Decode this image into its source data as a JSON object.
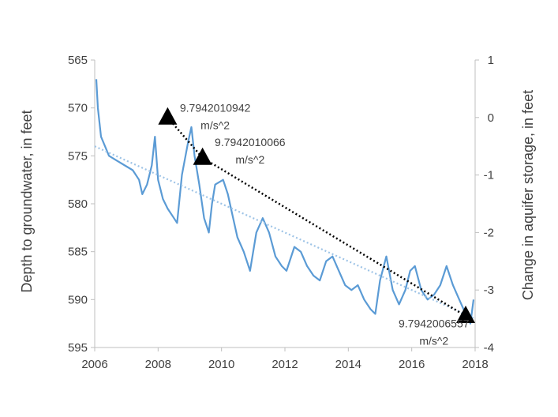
{
  "chart_data": {
    "type": "line",
    "xlabel": "",
    "ylabel": "Depth to groundwater, in feet",
    "y2label": "Change in aquifer storage, in feet",
    "xlim": [
      2006,
      2018
    ],
    "ylim": [
      565,
      595
    ],
    "y_inverted": true,
    "y2lim": [
      -4,
      1
    ],
    "x_ticks": [
      "2006",
      "2008",
      "2010",
      "2012",
      "2014",
      "2016",
      "2018"
    ],
    "y_ticks": [
      "565",
      "570",
      "575",
      "580",
      "585",
      "590",
      "595"
    ],
    "y2_ticks": [
      "1",
      "0",
      "-1",
      "-2",
      "-3",
      "-4"
    ],
    "grid": false,
    "legend": "none",
    "colors": {
      "depth": "#5b9bd5",
      "trend": "#9dc3e6",
      "storage": "#000000",
      "axis": "#bfbfbf",
      "text": "#404040"
    },
    "series": [
      {
        "style": "solid",
        "axis": "left",
        "x": [
          2006.05,
          2006.1,
          2006.2,
          2006.45,
          2006.7,
          2006.95,
          2007.2,
          2007.4,
          2007.5,
          2007.65,
          2007.8,
          2007.9,
          2008.0,
          2008.15,
          2008.3,
          2008.5,
          2008.6,
          2008.75,
          2008.95,
          2009.05,
          2009.15,
          2009.3,
          2009.45,
          2009.6,
          2009.7,
          2009.8,
          2010.05,
          2010.2,
          2010.3,
          2010.5,
          2010.7,
          2010.9,
          2011.1,
          2011.3,
          2011.5,
          2011.7,
          2011.9,
          2012.05,
          2012.3,
          2012.5,
          2012.7,
          2012.9,
          2013.1,
          2013.3,
          2013.5,
          2013.7,
          2013.9,
          2014.1,
          2014.3,
          2014.5,
          2014.7,
          2014.85,
          2015.0,
          2015.2,
          2015.4,
          2015.6,
          2015.8,
          2015.95,
          2016.1,
          2016.3,
          2016.5,
          2016.7,
          2016.9,
          2017.1,
          2017.3,
          2017.5,
          2017.7,
          2017.85,
          2017.95
        ],
        "y": [
          567.0,
          570.0,
          573.0,
          575.0,
          575.5,
          576.0,
          576.5,
          577.5,
          579.0,
          578.0,
          576.0,
          573.0,
          577.5,
          579.5,
          580.5,
          581.5,
          582.0,
          577.0,
          573.5,
          572.0,
          575.0,
          578.0,
          581.5,
          583.0,
          580.0,
          578.0,
          577.5,
          579.0,
          580.5,
          583.5,
          585.0,
          587.0,
          583.0,
          581.5,
          583.0,
          585.5,
          586.5,
          587.0,
          584.5,
          585.0,
          586.5,
          587.5,
          588.0,
          586.0,
          585.5,
          587.0,
          588.5,
          589.0,
          588.5,
          590.0,
          591.0,
          591.5,
          588.0,
          585.5,
          589.0,
          590.5,
          589.0,
          587.0,
          586.5,
          589.0,
          590.0,
          589.5,
          588.5,
          586.5,
          588.5,
          590.0,
          591.5,
          592.5,
          590.0
        ]
      },
      {
        "style": "dotted",
        "axis": "left",
        "x": [
          2006.0,
          2018.0
        ],
        "y": [
          574.0,
          592.0
        ]
      },
      {
        "style": "dotted",
        "axis": "right",
        "marker": "triangle",
        "x": [
          2008.3,
          2009.4,
          2017.7
        ],
        "y": [
          0.0,
          -0.7,
          -3.45
        ]
      }
    ],
    "annotations": [
      {
        "lines": [
          "9.7942010942",
          "m/s^2"
        ],
        "x": 2009.8,
        "y": 0.1
      },
      {
        "lines": [
          "9.7942010066",
          "m/s^2"
        ],
        "x": 2010.9,
        "y": -0.5
      },
      {
        "lines": [
          "9.7942006557",
          "m/s^2"
        ],
        "x": 2016.7,
        "y": -3.65
      }
    ]
  }
}
